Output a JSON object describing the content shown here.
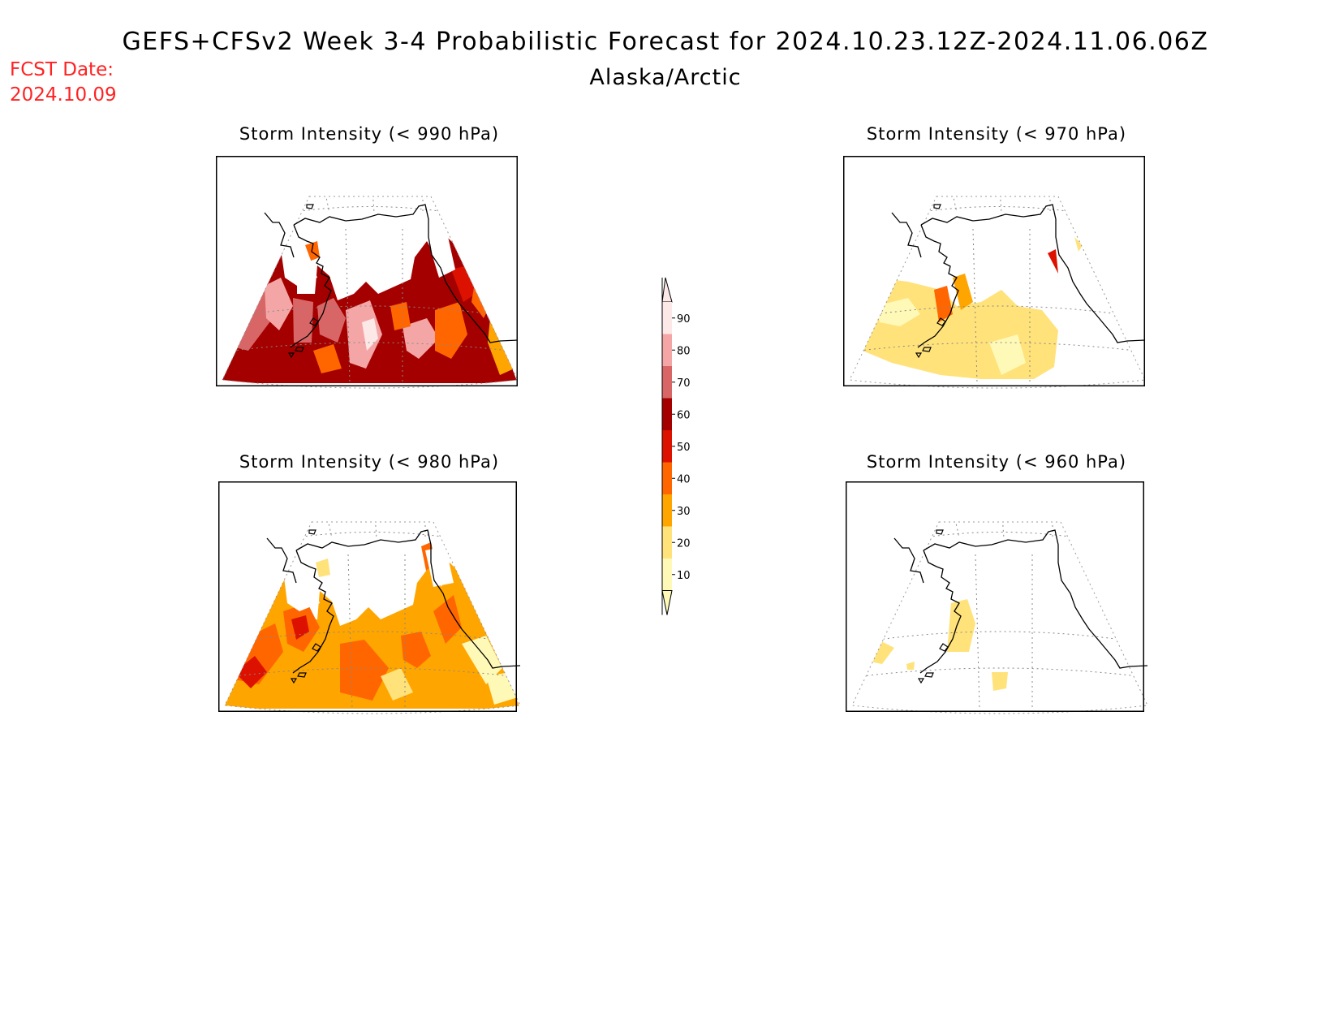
{
  "header": {
    "title": "GEFS+CFSv2 Week 3-4 Probabilistic Forecast for 2024.10.23.12Z-2024.11.06.06Z",
    "subtitle": "Alaska/Arctic",
    "fcst_label": "FCST Date:",
    "fcst_date": "2024.10.09",
    "fcst_color": "#ff2222"
  },
  "panels": [
    {
      "id": "p990",
      "title": "Storm Intensity (< 990 hPa)",
      "level": "high"
    },
    {
      "id": "p970",
      "title": "Storm Intensity (< 970 hPa)",
      "level": "low"
    },
    {
      "id": "p980",
      "title": "Storm Intensity (< 980 hPa)",
      "level": "mid"
    },
    {
      "id": "p960",
      "title": "Storm Intensity (< 960 hPa)",
      "level": "vlow"
    }
  ],
  "colorbar": {
    "labels": [
      "90",
      "80",
      "70",
      "60",
      "50",
      "40",
      "30",
      "20",
      "10"
    ],
    "colors": [
      "#fde8e8",
      "#f4a6a6",
      "#d96666",
      "#a50000",
      "#dd1100",
      "#ff6600",
      "#ffa500",
      "#ffe27a",
      "#fff9b8"
    ]
  }
}
